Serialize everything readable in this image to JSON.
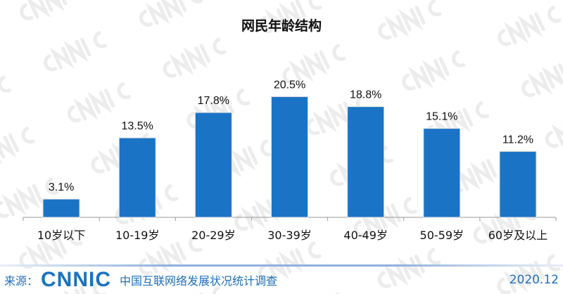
{
  "chart_data": {
    "type": "bar",
    "title": "网民年龄结构",
    "categories": [
      "10岁以下",
      "10-19岁",
      "20-29岁",
      "30-39岁",
      "40-49岁",
      "50-59岁",
      "60岁及以上"
    ],
    "values": [
      3.1,
      13.5,
      17.8,
      20.5,
      18.8,
      15.1,
      11.2
    ],
    "data_labels": [
      "3.1%",
      "13.5%",
      "17.8%",
      "20.5%",
      "18.8%",
      "15.1%",
      "11.2%"
    ],
    "unit": "%",
    "ylim": [
      0,
      25
    ],
    "grid": false,
    "legend": "none",
    "bar_color": "#1a73c5"
  },
  "footer": {
    "source_label": "来源：",
    "logo_text": "CNNIC",
    "report_name": "中国互联网络发展状况统计调查",
    "date": "2020.12"
  },
  "watermark": "CNNIC"
}
